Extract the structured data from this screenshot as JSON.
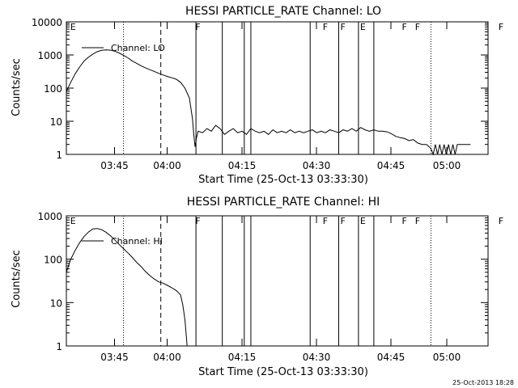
{
  "chart_data": [
    {
      "type": "line",
      "title": "HESSI PARTICLE_RATE Channel: LO",
      "xlabel": "Start Time (25-Oct-13 03:33:30)",
      "ylabel": "Counts/sec",
      "yscale": "log",
      "ylim": [
        1,
        10000
      ],
      "xlim_minutes_after_0333": [
        0,
        96
      ],
      "x_ticks": [
        "03:45",
        "04:00",
        "04:15",
        "04:30",
        "04:45",
        "05:00"
      ],
      "y_ticks": [
        "1",
        "10",
        "100",
        "1000",
        "10000"
      ],
      "legend": [
        "Channel: LO"
      ],
      "flags": [
        "E",
        "F",
        "F",
        "F",
        "F",
        "F",
        "F",
        "E"
      ],
      "series": [
        {
          "name": "Channel: LO",
          "points": [
            [
              0.0,
              80
            ],
            [
              1.0,
              150
            ],
            [
              2.0,
              270
            ],
            [
              3.0,
              430
            ],
            [
              4.0,
              650
            ],
            [
              5.0,
              850
            ],
            [
              6.0,
              1050
            ],
            [
              7.0,
              1250
            ],
            [
              8.0,
              1380
            ],
            [
              9.0,
              1420
            ],
            [
              10.0,
              1400
            ],
            [
              11.0,
              1300
            ],
            [
              12.0,
              1150
            ],
            [
              13.0,
              980
            ],
            [
              14.0,
              820
            ],
            [
              15.0,
              660
            ],
            [
              16.0,
              560
            ],
            [
              17.0,
              470
            ],
            [
              18.0,
              410
            ],
            [
              19.0,
              360
            ],
            [
              20.0,
              320
            ],
            [
              21.0,
              280
            ],
            [
              22.0,
              250
            ],
            [
              23.0,
              225
            ],
            [
              24.0,
              205
            ],
            [
              25.0,
              185
            ],
            [
              26.0,
              150
            ],
            [
              27.0,
              100
            ],
            [
              28.0,
              50
            ],
            [
              28.7,
              12
            ],
            [
              29.0,
              4
            ],
            [
              29.3,
              1.7
            ],
            [
              29.6,
              3
            ],
            [
              30.0,
              5
            ],
            [
              31.0,
              4.5
            ],
            [
              32.0,
              6
            ],
            [
              33.0,
              5
            ],
            [
              34.0,
              7.5
            ],
            [
              35.0,
              6
            ],
            [
              36.0,
              4
            ],
            [
              37.0,
              5
            ],
            [
              38.0,
              6
            ],
            [
              39.0,
              4.5
            ],
            [
              40.0,
              5
            ],
            [
              41.0,
              4
            ],
            [
              42.0,
              6
            ],
            [
              43.0,
              5
            ],
            [
              44.0,
              4.5
            ],
            [
              45.0,
              5
            ],
            [
              46.0,
              4
            ],
            [
              47.0,
              5.5
            ],
            [
              48.0,
              4.5
            ],
            [
              49.0,
              5
            ],
            [
              50.0,
              4.5
            ],
            [
              51.0,
              5.5
            ],
            [
              52.0,
              4.5
            ],
            [
              53.0,
              5
            ],
            [
              54.0,
              4.5
            ],
            [
              55.0,
              5
            ],
            [
              56.0,
              5.5
            ],
            [
              57.0,
              4.5
            ],
            [
              58.0,
              5
            ],
            [
              59.0,
              4.5
            ],
            [
              60.0,
              5.5
            ],
            [
              61.0,
              5
            ],
            [
              62.0,
              4.5
            ],
            [
              63.0,
              5.5
            ],
            [
              64.0,
              5
            ],
            [
              65.0,
              6
            ],
            [
              66.0,
              5
            ],
            [
              67.0,
              6.5
            ],
            [
              68.0,
              5.5
            ],
            [
              69.0,
              5
            ],
            [
              70.0,
              5.5
            ],
            [
              71.0,
              5
            ],
            [
              72.0,
              5
            ],
            [
              73.0,
              4.8
            ],
            [
              74.0,
              4.2
            ],
            [
              75.0,
              3.5
            ],
            [
              76.0,
              3.2
            ],
            [
              77.0,
              3
            ],
            [
              78.0,
              2.6
            ],
            [
              79.0,
              2.8
            ],
            [
              80.0,
              2.2
            ],
            [
              81.0,
              2.0
            ],
            [
              82.0,
              2.0
            ],
            [
              83.0,
              1.5
            ],
            [
              83.5,
              1.0
            ],
            [
              84.0,
              2
            ],
            [
              84.5,
              1.0
            ],
            [
              85.0,
              2
            ],
            [
              85.5,
              1.0
            ],
            [
              86.0,
              2
            ],
            [
              86.5,
              1.0
            ],
            [
              87.0,
              2
            ],
            [
              87.5,
              1.0
            ],
            [
              88.0,
              2
            ],
            [
              88.5,
              1.0
            ],
            [
              89.0,
              2
            ],
            [
              90.0,
              2
            ],
            [
              91.0,
              2
            ],
            [
              92.0,
              2
            ]
          ]
        }
      ]
    },
    {
      "type": "line",
      "title": "HESSI PARTICLE_RATE Channel: HI",
      "xlabel": "Start Time (25-Oct-13 03:33:30)",
      "ylabel": "Counts/sec",
      "yscale": "log",
      "ylim": [
        1,
        1000
      ],
      "xlim_minutes_after_0333": [
        0,
        96
      ],
      "x_ticks": [
        "03:45",
        "04:00",
        "04:15",
        "04:30",
        "04:45",
        "05:00"
      ],
      "y_ticks": [
        "1",
        "10",
        "100",
        "1000"
      ],
      "legend": [
        "Channel: HI"
      ],
      "flags": [
        "E",
        "F",
        "F",
        "F",
        "F",
        "F",
        "F",
        "E"
      ],
      "series": [
        {
          "name": "Channel: HI",
          "points": [
            [
              0.0,
              50
            ],
            [
              1.0,
              100
            ],
            [
              2.0,
              160
            ],
            [
              3.0,
              240
            ],
            [
              4.0,
              330
            ],
            [
              5.0,
              420
            ],
            [
              6.0,
              500
            ],
            [
              7.0,
              510
            ],
            [
              8.0,
              480
            ],
            [
              9.0,
              420
            ],
            [
              10.0,
              350
            ],
            [
              11.0,
              280
            ],
            [
              12.0,
              220
            ],
            [
              13.0,
              175
            ],
            [
              14.0,
              140
            ],
            [
              15.0,
              110
            ],
            [
              16.0,
              85
            ],
            [
              17.0,
              68
            ],
            [
              18.0,
              52
            ],
            [
              19.0,
              42
            ],
            [
              20.0,
              35
            ],
            [
              21.0,
              30
            ],
            [
              22.0,
              28
            ],
            [
              23.0,
              25
            ],
            [
              24.0,
              22
            ],
            [
              25.0,
              19
            ],
            [
              26.0,
              15
            ],
            [
              26.5,
              9
            ],
            [
              27.0,
              4
            ],
            [
              27.5,
              1
            ]
          ]
        }
      ]
    }
  ],
  "markers": {
    "flag_times": [
      0.5,
      29,
      58,
      76,
      79,
      98
    ],
    "dotted_lines": [
      13.0,
      83.0
    ],
    "dashed_line": 21.5,
    "solid_lines": [
      29.5,
      35.5,
      40.5,
      42.0,
      55.5,
      62.0,
      66.5,
      70.0
    ]
  },
  "timestamp": "25-Oct-2013 18:28"
}
